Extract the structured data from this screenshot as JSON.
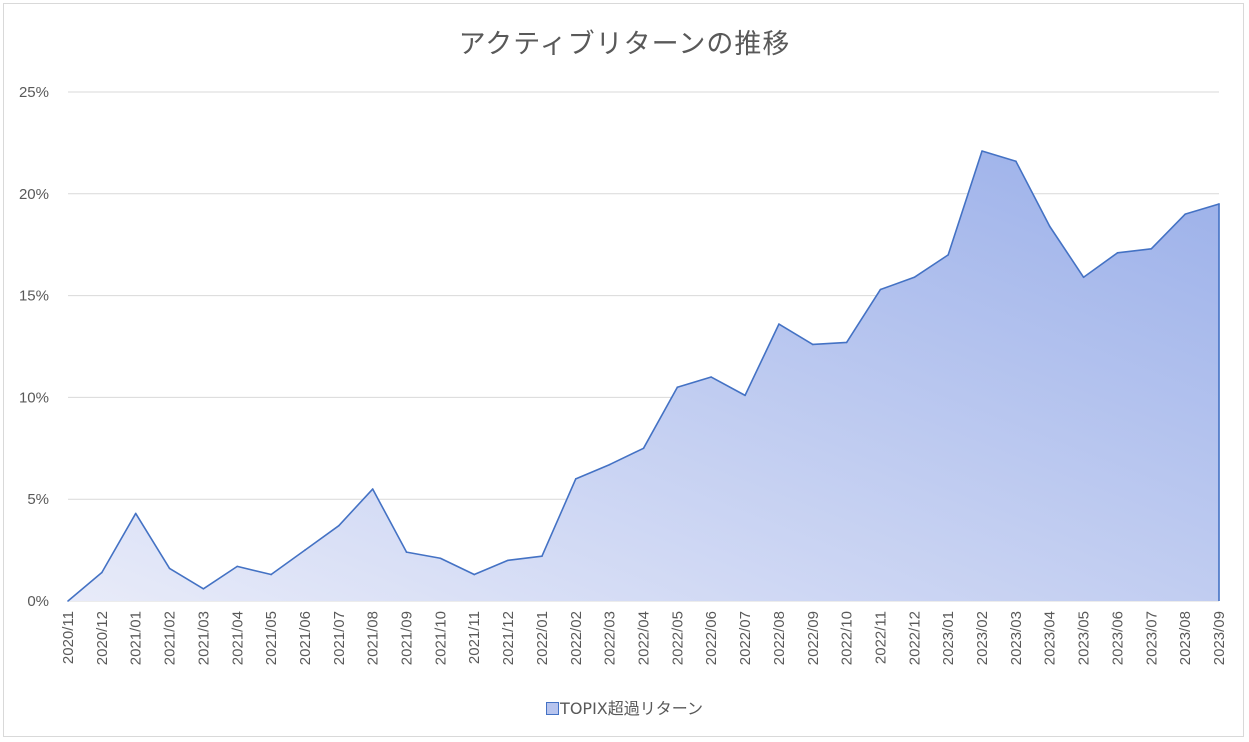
{
  "chart_data": {
    "type": "area",
    "title": "アクティブリターンの推移",
    "xlabel": "",
    "ylabel": "",
    "ylim": [
      0,
      0.25
    ],
    "y_ticks": [
      "0%",
      "5%",
      "10%",
      "15%",
      "20%",
      "25%"
    ],
    "grid": true,
    "legend_position": "bottom",
    "x": [
      "2020/11",
      "2020/12",
      "2021/01",
      "2021/02",
      "2021/03",
      "2021/04",
      "2021/05",
      "2021/06",
      "2021/07",
      "2021/08",
      "2021/09",
      "2021/10",
      "2021/11",
      "2021/12",
      "2022/01",
      "2022/02",
      "2022/03",
      "2022/04",
      "2022/05",
      "2022/06",
      "2022/07",
      "2022/08",
      "2022/09",
      "2022/10",
      "2022/11",
      "2022/12",
      "2023/01",
      "2023/02",
      "2023/03",
      "2023/04",
      "2023/05",
      "2023/06",
      "2023/07",
      "2023/08",
      "2023/09"
    ],
    "series": [
      {
        "name": "TOPIX超過リターン",
        "values": [
          0.0,
          0.014,
          0.043,
          0.016,
          0.006,
          0.017,
          0.013,
          0.025,
          0.037,
          0.055,
          0.024,
          0.021,
          0.013,
          0.02,
          0.022,
          0.06,
          0.067,
          0.075,
          0.105,
          0.11,
          0.101,
          0.136,
          0.126,
          0.127,
          0.153,
          0.159,
          0.17,
          0.221,
          0.216,
          0.184,
          0.159,
          0.171,
          0.173,
          0.19,
          0.195
        ]
      }
    ]
  },
  "colors": {
    "line": "#4472c4",
    "fill_start": "#e8ebf9",
    "fill_end": "#9aafe9",
    "grid": "#d9d9d9",
    "text": "#595959"
  }
}
